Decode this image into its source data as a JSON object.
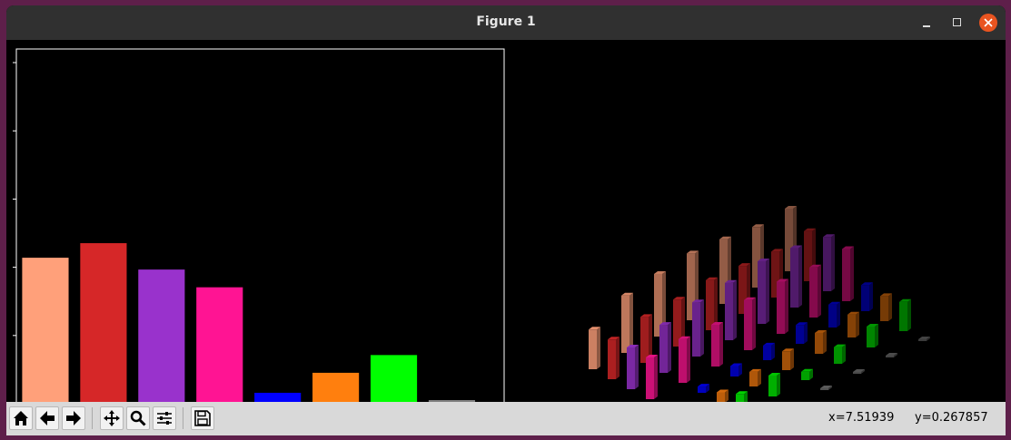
{
  "window": {
    "title": "Figure 1"
  },
  "toolbar": {
    "buttons": [
      {
        "name": "home-button",
        "icon": "home-icon"
      },
      {
        "name": "back-button",
        "icon": "back-arrow-icon"
      },
      {
        "name": "forward-button",
        "icon": "forward-arrow-icon"
      },
      {
        "name": "pan-button",
        "icon": "move-icon"
      },
      {
        "name": "zoom-button",
        "icon": "magnifier-icon"
      },
      {
        "name": "configure-button",
        "icon": "sliders-icon"
      },
      {
        "name": "save-button",
        "icon": "floppy-icon"
      }
    ],
    "x_readout": "x=7.51939",
    "y_readout": "y=0.267857"
  },
  "chart_data": [
    {
      "type": "bar",
      "categories": [
        "",
        "",
        "",
        "",
        "",
        "",
        "",
        ""
      ],
      "values": [
        0.321,
        0.353,
        0.295,
        0.256,
        0.024,
        0.068,
        0.107,
        0.008
      ],
      "colors": [
        "#ffa07a",
        "#d62728",
        "#9932cc",
        "#ff1493",
        "#0000ff",
        "#ff7f0e",
        "#00ff00",
        "#808080"
      ],
      "ylim": [
        0,
        0.78
      ],
      "xlim": [
        -0.5,
        7.9
      ],
      "grid": false,
      "background": "#000000"
    },
    {
      "type": "bar3d",
      "rows": 8,
      "cols": 7,
      "row_colors": [
        "#ffa07a",
        "#d62728",
        "#9932cc",
        "#ff1493",
        "#0000ff",
        "#ff7f0e",
        "#00ff00",
        "#808080"
      ],
      "values": [
        [
          0.38,
          0.55,
          0.6,
          0.64,
          0.62,
          0.58,
          0.6
        ],
        [
          0.38,
          0.44,
          0.45,
          0.48,
          0.46,
          0.44,
          0.48
        ],
        [
          0.4,
          0.46,
          0.52,
          0.55,
          0.6,
          0.57,
          0.52
        ],
        [
          0.4,
          0.42,
          0.4,
          0.48,
          0.5,
          0.48,
          0.5
        ],
        [
          0.02,
          0.06,
          0.1,
          0.14,
          0.18,
          0.22,
          0.25
        ],
        [
          0.06,
          0.1,
          0.14,
          0.18,
          0.2,
          0.22,
          0.24
        ],
        [
          0.1,
          0.18,
          0.2,
          0.08,
          0.16,
          0.2,
          0.28
        ],
        [
          0.01,
          0.01,
          0.01,
          0.01,
          0.01,
          0.01,
          0.01
        ]
      ],
      "background": "#000000"
    }
  ]
}
